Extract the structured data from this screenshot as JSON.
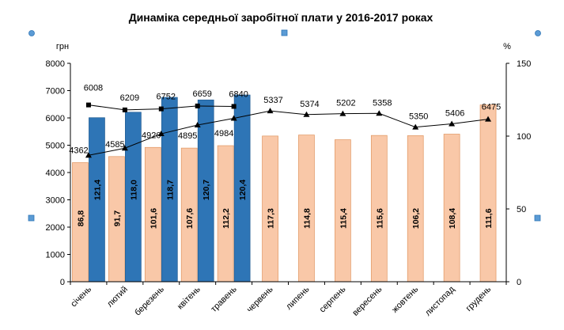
{
  "chart_data": {
    "type": "bar",
    "title": "Динаміка середньої заробітної плати у 2016-2017 роках",
    "left_axis_unit": "грн",
    "right_axis_unit": "%",
    "categories": [
      "січень",
      "лютий",
      "березень",
      "квітень",
      "травень",
      "червень",
      "липень",
      "серпень",
      "вересень",
      "жовтень",
      "листопад",
      "грудень"
    ],
    "left_axis": {
      "min": 0,
      "max": 8000,
      "ticks": [
        "0",
        "1000",
        "2000",
        "3000",
        "4000",
        "5000",
        "6000",
        "7000",
        "8000"
      ]
    },
    "right_axis": {
      "min": 0,
      "max": 150,
      "ticks": [
        "0",
        "50",
        "100",
        "150"
      ]
    },
    "bars_2016": {
      "color": "#f9c8a8",
      "values": [
        4362,
        4585,
        4920,
        4895,
        4984,
        5337,
        5374,
        5202,
        5358,
        5350,
        5406,
        6475
      ],
      "labels": [
        "4362",
        "4585",
        "4920",
        "4895",
        "4984",
        "5337",
        "5374",
        "5202",
        "5358",
        "5350",
        "5406",
        "6475"
      ],
      "index_labels": [
        "86,8",
        "91,7",
        "101,6",
        "107,6",
        "112,2",
        "117,3",
        "114,8",
        "115,4",
        "115,6",
        "106,2",
        "108,4",
        "111,6"
      ]
    },
    "bars_2017": {
      "color": "#2e75b6",
      "values": [
        6008,
        6209,
        6752,
        6659,
        6840
      ],
      "labels": [
        "6008",
        "6209",
        "6752",
        "6659",
        "6840"
      ],
      "index_labels": [
        "121,4",
        "118,0",
        "118,7",
        "120,7",
        "120,4"
      ]
    },
    "line_2016": {
      "marker": "triangle",
      "values": [
        86.8,
        91.7,
        101.6,
        107.6,
        112.2,
        117.3,
        114.8,
        115.4,
        115.6,
        106.2,
        108.4,
        111.6
      ]
    },
    "line_2017": {
      "marker": "square",
      "values": [
        121.4,
        118.0,
        118.7,
        120.7,
        120.4
      ]
    },
    "grid": false,
    "legend": "none"
  }
}
